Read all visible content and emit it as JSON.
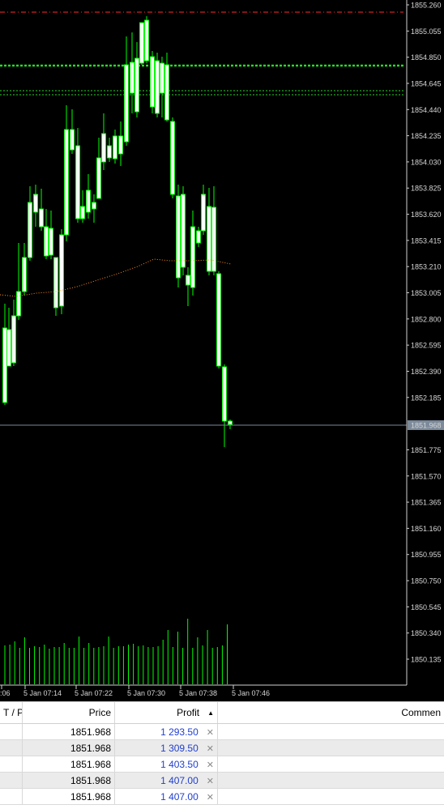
{
  "chart": {
    "price_labels": [
      "1855.260",
      "1855.055",
      "1854.850",
      "1854.645",
      "1854.440",
      "1854.235",
      "1854.030",
      "1853.825",
      "1853.620",
      "1853.415",
      "1853.210",
      "1853.005",
      "1852.800",
      "1852.595",
      "1852.390",
      "1852.185",
      "1851.968",
      "1851.775",
      "1851.570",
      "1851.365",
      "1851.160",
      "1850.955",
      "1850.750",
      "1850.545",
      "1850.340",
      "1850.135"
    ],
    "current_price": "1851.968",
    "time_labels": [
      ":06",
      "5 Jan 07:14",
      "5 Jan 07:22",
      "5 Jan 07:30",
      "5 Jan 07:38",
      "5 Jan 07:46"
    ],
    "colors": {
      "background": "#000000",
      "candle": "#00ff00",
      "bull_fill": "#000000",
      "bear_fill": "#ffffff",
      "volume": "#00ff00",
      "ma": "#ff8c1a",
      "red_line": "#ff2a2a",
      "green_level": "#22dd22",
      "bid_line": "#7c8a9a"
    }
  },
  "terminal": {
    "headers": {
      "tp": "T / P",
      "price": "Price",
      "profit": "Profit",
      "comment": "Commen"
    },
    "sort_icon": "▲",
    "rows": [
      {
        "price": "1851.968",
        "profit": "1 293.50"
      },
      {
        "price": "1851.968",
        "profit": "1 309.50"
      },
      {
        "price": "1851.968",
        "profit": "1 403.50"
      },
      {
        "price": "1851.968",
        "profit": "1 407.00"
      },
      {
        "price": "1851.968",
        "profit": "1 407.00"
      }
    ],
    "close_icon": "✕"
  }
}
